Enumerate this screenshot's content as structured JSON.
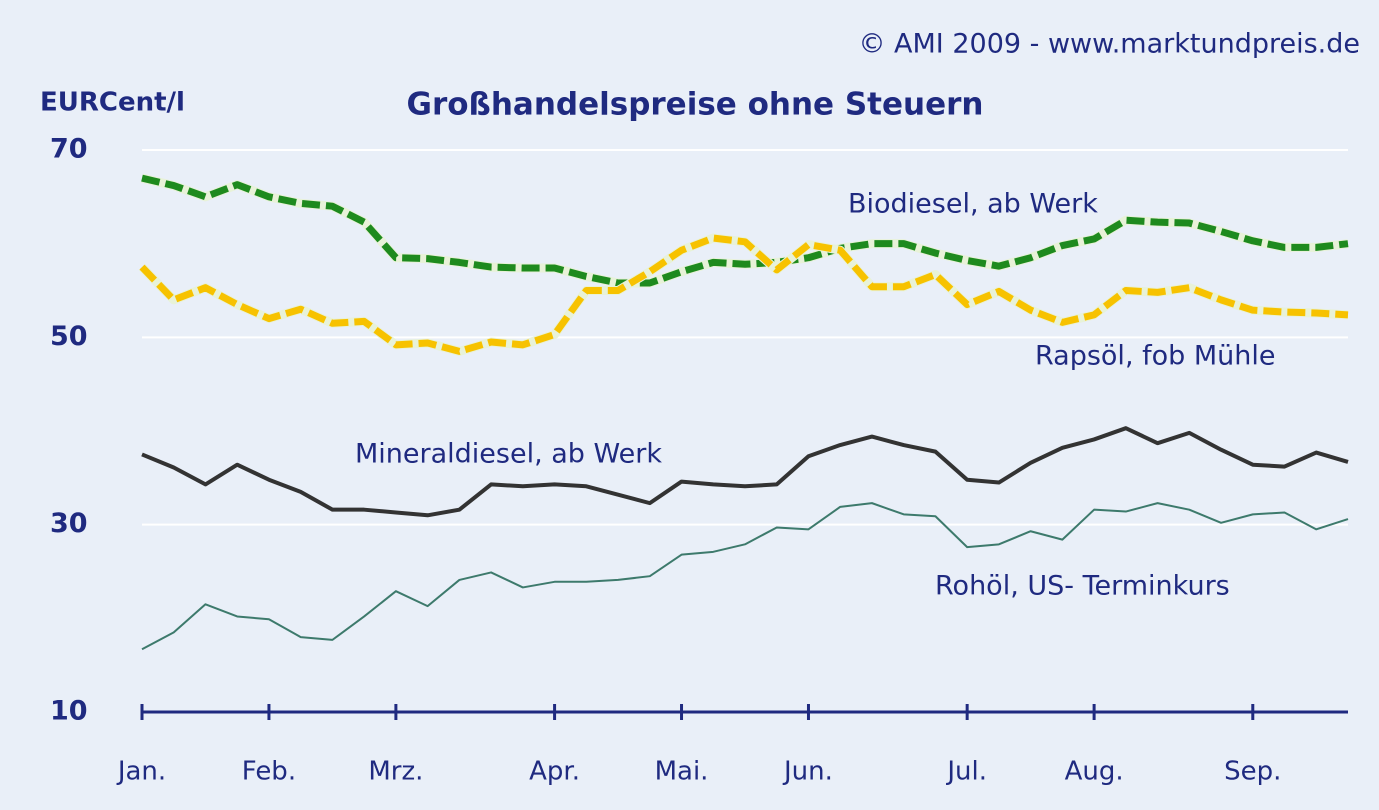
{
  "chart_data": {
    "type": "line",
    "title": "Großhandelspreise ohne Steuern",
    "source": "© AMI 2009 - www.marktundpreis.de",
    "y_label": "EURCent/l",
    "categories": [
      "Jan.",
      null,
      null,
      null,
      "Feb.",
      null,
      null,
      null,
      "Mrz.",
      null,
      null,
      null,
      null,
      "Apr.",
      null,
      null,
      null,
      "Mai.",
      null,
      null,
      null,
      "Jun.",
      null,
      null,
      null,
      null,
      "Jul.",
      null,
      null,
      null,
      "Aug.",
      null,
      null,
      null,
      null,
      "Sep.",
      null,
      null,
      null
    ],
    "ylim": [
      10,
      70
    ],
    "yticks": [
      10,
      30,
      50,
      70
    ],
    "grid": true,
    "series": [
      {
        "name": "Biodiesel, ab Werk",
        "color": "#1e8a1e",
        "style": "dashed",
        "values": [
          67,
          66.2,
          65,
          66.3,
          65,
          64.3,
          64,
          62.3,
          58.5,
          58.4,
          58,
          57.5,
          57.4,
          57.4,
          56.5,
          55.8,
          55.8,
          57,
          58,
          57.8,
          58,
          58.5,
          59.5,
          60,
          60,
          59,
          58.2,
          57.6,
          58.5,
          59.8,
          60.5,
          62.5,
          62.3,
          62.2,
          61.3,
          60.3,
          59.6,
          59.6,
          60
        ]
      },
      {
        "name": "Rapsöl, fob Mühle",
        "color": "#f7c200",
        "style": "dashed",
        "values": [
          57.5,
          54,
          55.3,
          53.5,
          52,
          53,
          51.5,
          51.7,
          49.2,
          49.4,
          48.5,
          49.5,
          49.2,
          50.3,
          55,
          55,
          57,
          59.3,
          60.6,
          60.2,
          57.2,
          59.9,
          59.3,
          55.4,
          55.4,
          56.7,
          53.5,
          54.9,
          52.9,
          51.6,
          52.4,
          55,
          54.8,
          55.3,
          54,
          52.9,
          52.7,
          52.6,
          52.4
        ]
      },
      {
        "name": "Mineraldiesel, ab Werk",
        "color": "#333333",
        "style": "solid",
        "values": [
          37.5,
          36.1,
          34.3,
          36.4,
          34.8,
          33.5,
          31.6,
          31.6,
          31.3,
          31,
          31.6,
          34.3,
          34.1,
          34.3,
          34.1,
          33.2,
          32.3,
          34.6,
          34.3,
          34.1,
          34.3,
          37.3,
          38.5,
          39.4,
          38.5,
          37.8,
          34.8,
          34.5,
          36.6,
          38.2,
          39.1,
          40.3,
          38.7,
          39.8,
          38,
          36.4,
          36.2,
          37.7,
          36.7
        ]
      },
      {
        "name": "Rohöl, US- Terminkurs",
        "color": "#3d7a6c",
        "style": "thin",
        "values": [
          16.7,
          18.5,
          21.5,
          20.2,
          19.9,
          18,
          17.7,
          20.2,
          22.9,
          21.3,
          24.1,
          24.9,
          23.3,
          23.9,
          23.9,
          24.1,
          24.5,
          26.8,
          27.1,
          27.9,
          29.7,
          29.5,
          31.9,
          32.3,
          31.1,
          30.9,
          27.6,
          27.9,
          29.3,
          28.4,
          31.6,
          31.4,
          32.3,
          31.6,
          30.2,
          31.1,
          31.3,
          29.5,
          30.6
        ]
      }
    ]
  }
}
